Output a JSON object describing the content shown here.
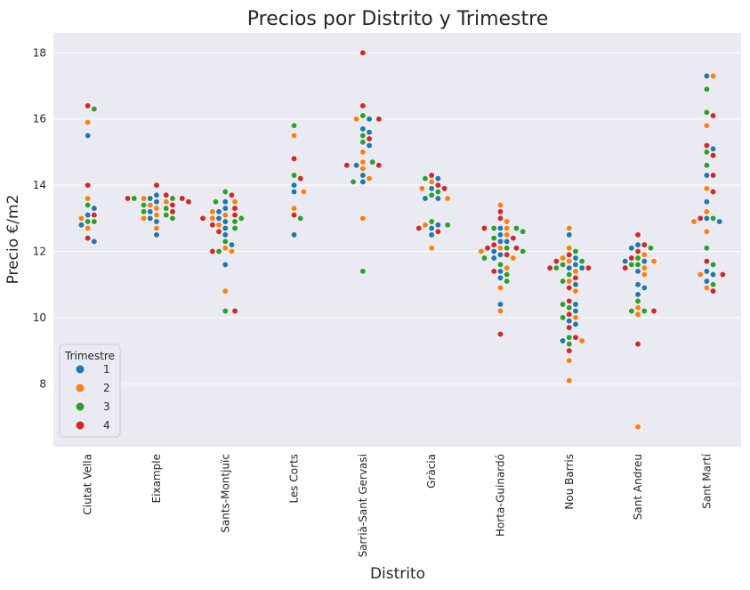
{
  "chart_data": {
    "type": "scatter",
    "subtype": "swarm",
    "title": "Precios por Distrito y Trimestre",
    "xlabel": "Distrito",
    "ylabel": "Precio €/m2",
    "ylim": [
      6.1,
      18.6
    ],
    "yticks": [
      8,
      10,
      12,
      14,
      16,
      18
    ],
    "grid": true,
    "legend_position": "lower-left",
    "categories": [
      "Ciutat Vella",
      "Eixample",
      "Sants-Montjuïc",
      "Les Corts",
      "Sarrià-Sant Gervasi",
      "Gràcia",
      "Horta-Guinardó",
      "Nou Barris",
      "Sant Andreu",
      "Sant Martí"
    ],
    "legend": {
      "title": "Trimestre",
      "entries": [
        {
          "label": "1",
          "color": "#1f77b4"
        },
        {
          "label": "2",
          "color": "#ff7f0e"
        },
        {
          "label": "3",
          "color": "#2ca02c"
        },
        {
          "label": "4",
          "color": "#d62728"
        }
      ]
    },
    "colors": {
      "1": "#1f77b4",
      "2": "#ff7f0e",
      "3": "#2ca02c",
      "4": "#d62728",
      "background": "#eaeaf2",
      "grid": "#ffffff"
    },
    "series": [
      {
        "category": "Ciutat Vella",
        "values": {
          "1": [
            15.5,
            13.3,
            12.8,
            12.3,
            13.1
          ],
          "2": [
            15.9,
            13.6,
            12.7,
            13.0
          ],
          "3": [
            16.3,
            13.4,
            12.9,
            12.9
          ],
          "4": [
            16.4,
            14.0,
            12.4,
            13.1
          ]
        }
      },
      {
        "category": "Eixample",
        "values": {
          "1": [
            13.6,
            13.5,
            13.2,
            13.0,
            12.5,
            13.7,
            12.9
          ],
          "2": [
            13.5,
            13.3,
            13.0,
            12.7,
            13.6,
            13.1,
            13.4
          ],
          "3": [
            13.6,
            13.4,
            13.2,
            13.0,
            13.6,
            13.3,
            13.1
          ],
          "4": [
            14.0,
            13.7,
            13.6,
            13.5,
            13.4,
            13.2,
            13.6
          ]
        }
      },
      {
        "category": "Sants-Montjuïc",
        "values": {
          "1": [
            13.5,
            13.2,
            13.0,
            12.9,
            12.7,
            12.5,
            12.2,
            11.6,
            13.3
          ],
          "2": [
            13.5,
            13.2,
            13.0,
            12.8,
            12.1,
            12.0,
            10.8,
            13.1
          ],
          "3": [
            13.8,
            13.5,
            13.0,
            12.7,
            12.3,
            12.0,
            10.2,
            12.9
          ],
          "4": [
            13.7,
            13.3,
            13.0,
            12.8,
            12.6,
            12.0,
            10.2,
            13.1
          ]
        }
      },
      {
        "category": "Les Corts",
        "values": {
          "1": [
            14.0,
            13.8,
            12.5
          ],
          "2": [
            15.5,
            13.8,
            13.3
          ],
          "3": [
            15.8,
            14.3,
            13.0
          ],
          "4": [
            14.8,
            14.2,
            13.1
          ]
        }
      },
      {
        "category": "Sarrià-Sant Gervasi",
        "values": {
          "1": [
            16.0,
            15.7,
            15.6,
            15.2,
            14.6,
            14.3,
            14.1
          ],
          "2": [
            16.0,
            15.0,
            14.7,
            14.5,
            14.2,
            13.0
          ],
          "3": [
            16.1,
            15.5,
            15.3,
            14.7,
            14.1,
            11.4
          ],
          "4": [
            18.0,
            16.4,
            16.0,
            15.4,
            14.6,
            14.6
          ]
        }
      },
      {
        "category": "Gràcia",
        "values": {
          "1": [
            14.2,
            13.9,
            13.6,
            13.6,
            12.8,
            12.7,
            12.5
          ],
          "2": [
            14.1,
            13.9,
            13.6,
            12.8,
            12.1
          ],
          "3": [
            14.2,
            13.8,
            13.7,
            12.9,
            12.8
          ],
          "4": [
            14.3,
            14.0,
            13.9,
            12.7,
            12.6
          ]
        }
      },
      {
        "category": "Horta-Guinardó",
        "values": {
          "1": [
            12.7,
            12.5,
            12.3,
            12.3,
            12.0,
            11.9,
            11.8,
            11.4,
            11.2,
            10.4
          ],
          "2": [
            13.4,
            12.9,
            12.7,
            12.5,
            12.1,
            12.0,
            11.8,
            11.5,
            10.9,
            10.2
          ],
          "3": [
            12.7,
            12.6,
            12.4,
            12.1,
            12.0,
            11.8,
            11.3,
            11.1,
            12.7,
            11.6
          ],
          "4": [
            13.2,
            13.0,
            12.7,
            12.4,
            12.2,
            12.1,
            11.9,
            11.4,
            9.5,
            12.1
          ]
        }
      },
      {
        "category": "Nou Barris",
        "values": {
          "1": [
            12.5,
            11.8,
            11.6,
            11.5,
            11.0,
            10.4,
            10.2,
            9.9,
            9.8,
            9.3,
            11.5
          ],
          "2": [
            12.7,
            12.1,
            11.8,
            11.4,
            11.1,
            10.8,
            10.0,
            9.3,
            8.7,
            8.1,
            11.7
          ],
          "3": [
            12.0,
            11.7,
            11.5,
            11.3,
            11.1,
            10.4,
            10.3,
            10.0,
            9.4,
            9.2,
            11.6
          ],
          "4": [
            11.9,
            11.7,
            11.5,
            11.2,
            10.9,
            10.5,
            10.1,
            9.7,
            9.4,
            9.0,
            11.5
          ]
        }
      },
      {
        "category": "Sant Andreu",
        "values": {
          "1": [
            12.2,
            12.1,
            11.7,
            11.4,
            11.0,
            10.9,
            10.7,
            11.7
          ],
          "2": [
            11.9,
            11.7,
            11.3,
            10.3,
            10.1,
            6.7,
            11.5
          ],
          "3": [
            12.1,
            11.8,
            11.6,
            10.5,
            10.2,
            10.2,
            11.6
          ],
          "4": [
            12.5,
            12.2,
            11.8,
            11.5,
            10.2,
            9.2,
            12.0
          ]
        }
      },
      {
        "category": "Sant Martí",
        "values": {
          "1": [
            17.3,
            15.1,
            14.3,
            13.5,
            13.0,
            11.4,
            11.3,
            11.1,
            12.9
          ],
          "2": [
            17.3,
            15.8,
            13.9,
            13.2,
            12.6,
            11.3,
            10.9,
            12.9
          ],
          "3": [
            16.9,
            16.2,
            15.0,
            14.6,
            12.1,
            11.6,
            11.0,
            13.0
          ],
          "4": [
            16.1,
            15.2,
            14.9,
            14.3,
            13.8,
            11.7,
            11.3,
            10.8,
            13.0
          ]
        }
      }
    ]
  }
}
